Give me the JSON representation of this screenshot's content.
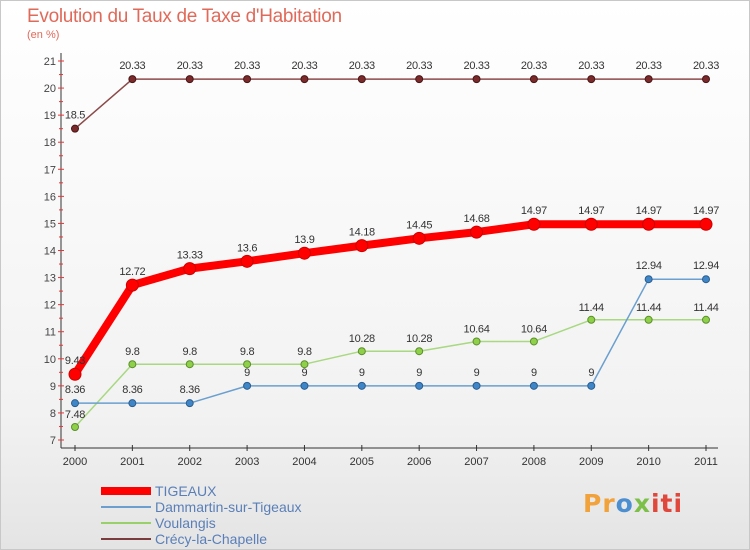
{
  "header": {
    "title": "Evolution du Taux de Taxe d'Habitation",
    "unit": "(en %)"
  },
  "chart_data": {
    "type": "line",
    "title": "Evolution du Taux de Taxe d'Habitation",
    "ylabel": "(en %)",
    "xlabel": "",
    "x": [
      "2000",
      "2001",
      "2002",
      "2003",
      "2004",
      "2005",
      "2006",
      "2007",
      "2008",
      "2009",
      "2010",
      "2011"
    ],
    "yticks": [
      "7",
      "8",
      "9",
      "10",
      "11",
      "12",
      "13",
      "14",
      "15",
      "16",
      "17",
      "18",
      "19",
      "20",
      "21"
    ],
    "ylim": [
      7,
      21
    ],
    "grid": false,
    "legend_position": "bottom-left",
    "series": [
      {
        "name": "TIGEAUX",
        "color": "#ff0000",
        "values": [
          9.43,
          12.72,
          13.33,
          13.6,
          13.9,
          14.18,
          14.45,
          14.68,
          14.97,
          14.97,
          14.97,
          14.97
        ],
        "labels": [
          "9.43",
          "12.72",
          "13.33",
          "13.6",
          "13.9",
          "14.18",
          "14.45",
          "14.68",
          "14.97",
          "14.97",
          "14.97",
          "14.97"
        ]
      },
      {
        "name": "Dammartin-sur-Tigeaux",
        "color": "#6a9fcf",
        "values": [
          8.36,
          8.36,
          8.36,
          9,
          9,
          9,
          9,
          9,
          9,
          9,
          12.94,
          12.94
        ],
        "labels": [
          "8.36",
          "8.36",
          "8.36",
          "9",
          "9",
          "9",
          "9",
          "9",
          "9",
          "9",
          "12.94",
          "12.94"
        ]
      },
      {
        "name": "Voulangis",
        "color": "#9ad06a",
        "values": [
          7.48,
          9.8,
          9.8,
          9.8,
          9.8,
          10.28,
          10.28,
          10.64,
          10.64,
          11.44,
          11.44,
          11.44
        ],
        "labels": [
          "7.48",
          "9.8",
          "9.8",
          "9.8",
          "9.8",
          "10.28",
          "10.28",
          "10.64",
          "10.64",
          "11.44",
          "11.44",
          "11.44"
        ]
      },
      {
        "name": "Crécy-la-Chapelle",
        "color": "#7a3c3c",
        "values": [
          18.5,
          20.33,
          20.33,
          20.33,
          20.33,
          20.33,
          20.33,
          20.33,
          20.33,
          20.33,
          20.33,
          20.33
        ],
        "labels": [
          "18.5",
          "20.33",
          "20.33",
          "20.33",
          "20.33",
          "20.33",
          "20.33",
          "20.33",
          "20.33",
          "20.33",
          "20.33",
          "20.33"
        ]
      }
    ]
  },
  "logo": {
    "letters": [
      "Pr",
      "o",
      "x",
      "iti"
    ],
    "colors": [
      "#f2a23a",
      "#4c8fd0",
      "#7cc04a",
      "#e0483c"
    ]
  }
}
